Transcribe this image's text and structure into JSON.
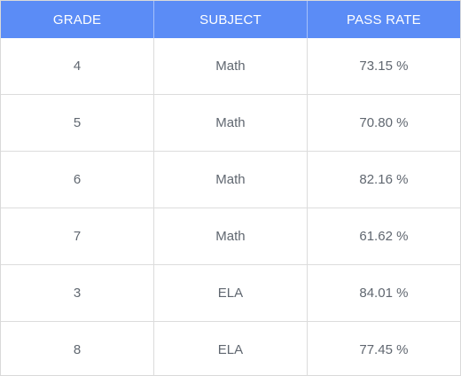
{
  "table": {
    "headers": [
      "GRADE",
      "SUBJECT",
      "PASS RATE"
    ],
    "rows": [
      [
        "4",
        "Math",
        "73.15 %"
      ],
      [
        "5",
        "Math",
        "70.80 %"
      ],
      [
        "6",
        "Math",
        "82.16 %"
      ],
      [
        "7",
        "Math",
        "61.62 %"
      ],
      [
        "3",
        "ELA",
        "84.01 %"
      ],
      [
        "8",
        "ELA",
        "77.45 %"
      ]
    ]
  },
  "colors": {
    "header_bg": "#5b8cf6",
    "header_text": "#ffffff",
    "cell_text": "#606770",
    "border": "#dcdcdc"
  }
}
